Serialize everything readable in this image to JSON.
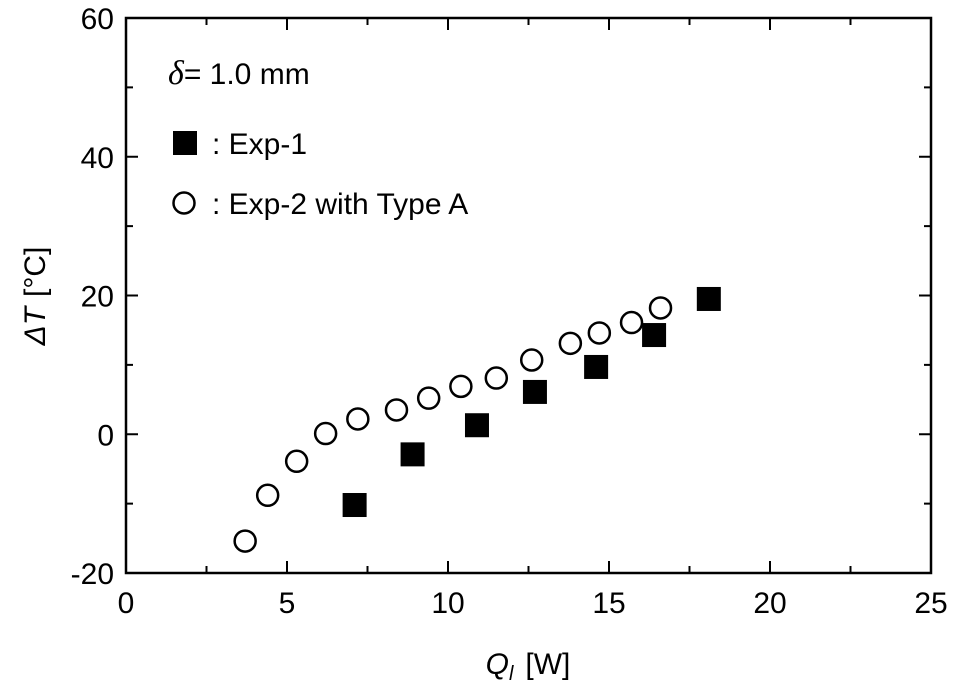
{
  "chart_data": {
    "type": "scatter",
    "title": "",
    "xlabel": {
      "symbol": "Q",
      "subscript": "l",
      "unit": "[W]"
    },
    "ylabel": {
      "symbol": "ΔT",
      "unit": "[°C]"
    },
    "xlim": [
      0,
      25
    ],
    "ylim": [
      -20,
      60
    ],
    "xticks": [
      0,
      5,
      10,
      15,
      20,
      25
    ],
    "yticks": [
      -20,
      0,
      20,
      40,
      60
    ],
    "xtick_labels": [
      "0",
      "5",
      "10",
      "15",
      "20",
      "25"
    ],
    "ytick_labels": [
      "-20",
      "0",
      "20",
      "40",
      "60"
    ],
    "grid": false,
    "legend_placement": "top-left",
    "annotation": {
      "symbol": "δ",
      "text": "= 1.0 mm"
    },
    "series": [
      {
        "name": ": Exp-1",
        "marker": "filled-square",
        "color": "#000000",
        "x": [
          7.1,
          8.9,
          10.9,
          12.7,
          14.6,
          16.4,
          18.1
        ],
        "y": [
          -10.2,
          -2.9,
          1.3,
          6.1,
          9.7,
          14.3,
          19.5
        ]
      },
      {
        "name": ": Exp-2 with Type A",
        "marker": "open-circle",
        "color": "#000000",
        "x": [
          3.7,
          4.4,
          5.3,
          6.2,
          7.2,
          8.4,
          9.4,
          10.4,
          11.5,
          12.6,
          13.8,
          14.7,
          15.7,
          16.6
        ],
        "y": [
          -15.4,
          -8.8,
          -3.9,
          0.1,
          2.2,
          3.5,
          5.2,
          6.9,
          8.1,
          10.7,
          13.1,
          14.6,
          16.1,
          18.2
        ]
      }
    ]
  }
}
